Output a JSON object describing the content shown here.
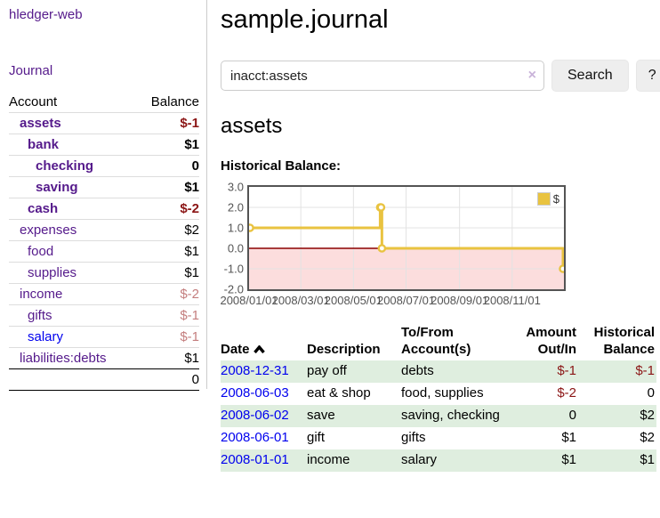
{
  "colors": {
    "link_purple": "#551a8b",
    "link_blue": "#0000ee",
    "negative_strong": "#8b1515",
    "negative_faded": "#c47e7e",
    "row_stripe_green": "#dfeedf",
    "chart_line_gold": "#e9c340",
    "chart_negative_fill": "#fcdddd",
    "chart_zero_line": "#8b0000",
    "chart_grid": "#e3e3e3",
    "chart_border": "#545454",
    "button_bg": "#eeeeee"
  },
  "sidebar": {
    "brand": "hledger-web",
    "nav_journal": "Journal",
    "accounts_table": {
      "headers": {
        "account": "Account",
        "balance": "Balance"
      },
      "rows": [
        {
          "label": "assets",
          "depth": 1,
          "matched": true,
          "link": "purple",
          "balance": "$-1",
          "balance_tone": "negative"
        },
        {
          "label": "bank",
          "depth": 2,
          "matched": true,
          "link": "purple",
          "balance": "$1",
          "balance_tone": "default"
        },
        {
          "label": "checking",
          "depth": 3,
          "matched": true,
          "link": "purple",
          "balance": "0",
          "balance_tone": "default"
        },
        {
          "label": "saving",
          "depth": 3,
          "matched": true,
          "link": "purple",
          "balance": "$1",
          "balance_tone": "default"
        },
        {
          "label": "cash",
          "depth": 2,
          "matched": true,
          "link": "purple",
          "balance": "$-2",
          "balance_tone": "negative"
        },
        {
          "label": "expenses",
          "depth": 1,
          "matched": false,
          "link": "purple",
          "balance": "$2",
          "balance_tone": "default"
        },
        {
          "label": "food",
          "depth": 2,
          "matched": false,
          "link": "purple",
          "balance": "$1",
          "balance_tone": "default"
        },
        {
          "label": "supplies",
          "depth": 2,
          "matched": false,
          "link": "purple",
          "balance": "$1",
          "balance_tone": "default"
        },
        {
          "label": "income",
          "depth": 1,
          "matched": false,
          "link": "purple",
          "balance": "$-2",
          "balance_tone": "negative_faded"
        },
        {
          "label": "gifts",
          "depth": 2,
          "matched": false,
          "link": "purple",
          "balance": "$-1",
          "balance_tone": "negative_faded"
        },
        {
          "label": "salary",
          "depth": 2,
          "matched": false,
          "link": "blue",
          "balance": "$-1",
          "balance_tone": "negative_faded"
        },
        {
          "label": "liabilities:debts",
          "depth": 1,
          "matched": false,
          "link": "purple",
          "balance": "$1",
          "balance_tone": "default"
        }
      ],
      "total": "0"
    }
  },
  "main": {
    "title": "sample.journal",
    "search": {
      "value": "inacct:assets",
      "clear_icon": "×",
      "search_button": "Search",
      "help_button": "?"
    },
    "account_heading": "assets",
    "chart_title": "Historical Balance:"
  },
  "chart_data": {
    "type": "line",
    "title": "Historical Balance",
    "series": [
      {
        "name": "$",
        "color": "#e9c340",
        "step": true,
        "points": [
          {
            "x": "2008-01-01",
            "y": 1
          },
          {
            "x": "2008-06-01",
            "y": 2
          },
          {
            "x": "2008-06-02",
            "y": 2
          },
          {
            "x": "2008-06-03",
            "y": 0
          },
          {
            "x": "2008-12-31",
            "y": -1
          }
        ]
      }
    ],
    "xrange": [
      "2008-01-01",
      "2008-12-31"
    ],
    "ylim": [
      -2.0,
      3.0
    ],
    "yticks": [
      "3.0",
      "2.0",
      "1.0",
      "0.0",
      "-1.0",
      "-2.0"
    ],
    "xtick_labels": [
      "2008/01/01",
      "2008/03/01",
      "2008/05/01",
      "2008/07/01",
      "2008/09/01",
      "2008/11/01"
    ],
    "legend": {
      "entries": [
        "$"
      ],
      "position": "top-right"
    },
    "grid": true,
    "negative_region_shaded": true
  },
  "register": {
    "headers": [
      {
        "label": "Date",
        "sorted": "asc"
      },
      {
        "label": "Description"
      },
      {
        "label": "To/From Account(s)"
      },
      {
        "label": "Amount Out/In"
      },
      {
        "label": "Historical Balance"
      }
    ],
    "rows": [
      {
        "date": "2008-12-31",
        "description": "pay off",
        "accounts": "debts",
        "amount": "$-1",
        "amount_negative": true,
        "balance": "$-1",
        "balance_negative": true,
        "striped": true
      },
      {
        "date": "2008-06-03",
        "description": "eat & shop",
        "accounts": "food, supplies",
        "amount": "$-2",
        "amount_negative": true,
        "balance": "0",
        "balance_negative": false,
        "striped": false
      },
      {
        "date": "2008-06-02",
        "description": "save",
        "accounts": "saving, checking",
        "amount": "0",
        "amount_negative": false,
        "balance": "$2",
        "balance_negative": false,
        "striped": true
      },
      {
        "date": "2008-06-01",
        "description": "gift",
        "accounts": "gifts",
        "amount": "$1",
        "amount_negative": false,
        "balance": "$2",
        "balance_negative": false,
        "striped": false
      },
      {
        "date": "2008-01-01",
        "description": "income",
        "accounts": "salary",
        "amount": "$1",
        "amount_negative": false,
        "balance": "$1",
        "balance_negative": false,
        "striped": true
      }
    ]
  }
}
